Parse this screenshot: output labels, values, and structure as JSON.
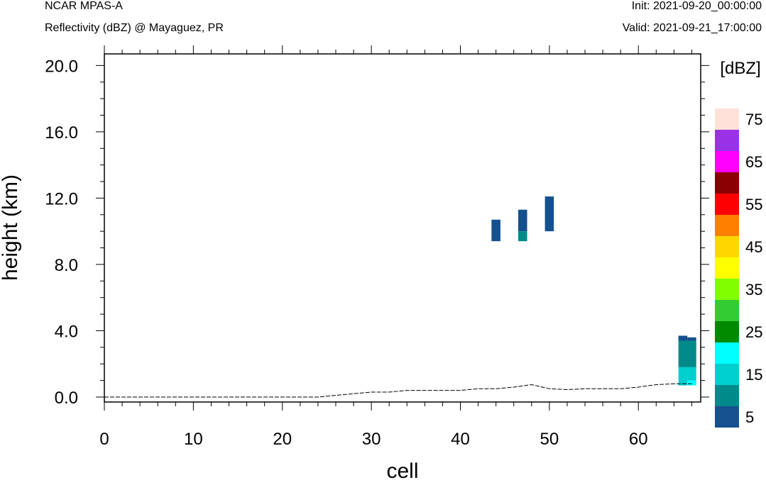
{
  "header": {
    "model": "NCAR MPAS-A",
    "variable": "Reflectivity (dBZ) @ Mayaguez, PR",
    "init": "Init: 2021-09-20_00:00:00",
    "valid": "Valid: 2021-09-21_17:00:00"
  },
  "chart_data": {
    "type": "heatmap",
    "xlabel": "cell",
    "ylabel": "height (km)",
    "xlim": [
      0,
      67
    ],
    "ylim": [
      -0.3,
      20.7
    ],
    "x_ticks": [
      0,
      10,
      20,
      30,
      40,
      50,
      60
    ],
    "y_ticks": [
      0,
      4,
      8,
      12,
      16,
      20
    ],
    "y_tick_labels": [
      "0.0",
      "4.0",
      "8.0",
      "12.0",
      "16.0",
      "20.0"
    ],
    "colorbar": {
      "title": "[dBZ]",
      "labels": [
        "5",
        "15",
        "25",
        "35",
        "45",
        "55",
        "65",
        "75"
      ],
      "levels": [
        5,
        10,
        15,
        20,
        25,
        30,
        35,
        40,
        45,
        50,
        55,
        60,
        65,
        70,
        75
      ],
      "colors": [
        "#15508f",
        "#008a8a",
        "#00cfcf",
        "#00ffff",
        "#008a00",
        "#33cc33",
        "#80ff00",
        "#ffff00",
        "#ffd700",
        "#ff8000",
        "#ff0000",
        "#8b0000",
        "#ff00ff",
        "#9932e6",
        "#ffe1d9"
      ]
    },
    "cells": [
      {
        "x0": 43.5,
        "x1": 44.5,
        "y0": 9.4,
        "y1": 10.7,
        "dbz": 5
      },
      {
        "x0": 46.5,
        "x1": 47.5,
        "y0": 10.0,
        "y1": 11.3,
        "dbz": 5
      },
      {
        "x0": 46.5,
        "x1": 47.5,
        "y0": 9.4,
        "y1": 10.0,
        "dbz": 10
      },
      {
        "x0": 49.5,
        "x1": 50.5,
        "y0": 10.0,
        "y1": 12.1,
        "dbz": 5
      },
      {
        "x0": 64.5,
        "x1": 65.5,
        "y0": 3.4,
        "y1": 3.7,
        "dbz": 5
      },
      {
        "x0": 65.5,
        "x1": 66.5,
        "y0": 3.4,
        "y1": 3.6,
        "dbz": 5
      },
      {
        "x0": 64.5,
        "x1": 66.5,
        "y0": 1.8,
        "y1": 3.4,
        "dbz": 10
      },
      {
        "x0": 64.5,
        "x1": 66.5,
        "y0": 1.0,
        "y1": 1.8,
        "dbz": 15
      },
      {
        "x0": 64.5,
        "x1": 65.5,
        "y0": 0.7,
        "y1": 1.0,
        "dbz": 15
      },
      {
        "x0": 65.5,
        "x1": 66.5,
        "y0": 0.7,
        "y1": 1.0,
        "dbz": 20
      }
    ],
    "terrain": {
      "x": [
        0,
        24,
        26,
        28,
        30,
        32,
        34,
        36,
        38,
        40,
        42,
        44,
        46,
        48,
        50,
        52,
        54,
        56,
        58,
        60,
        62,
        64,
        65,
        66
      ],
      "y": [
        0,
        0,
        0.1,
        0.2,
        0.3,
        0.3,
        0.4,
        0.4,
        0.4,
        0.4,
        0.5,
        0.5,
        0.6,
        0.75,
        0.5,
        0.45,
        0.5,
        0.5,
        0.5,
        0.6,
        0.75,
        0.8,
        0.8,
        0.8
      ]
    }
  }
}
